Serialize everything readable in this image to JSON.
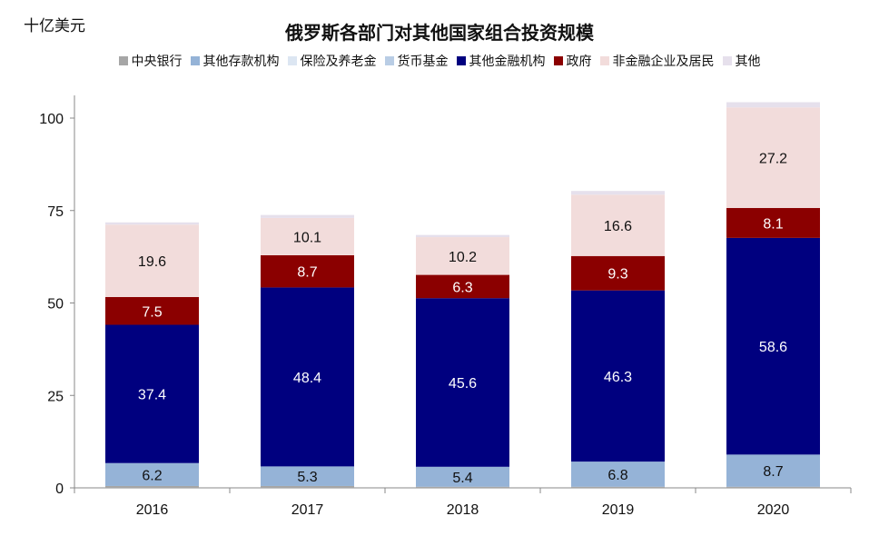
{
  "chart_data": {
    "type": "bar",
    "stacked": true,
    "title": "俄罗斯各部门对其他国家组合投资规模",
    "unit_label": "十亿美元",
    "categories": [
      "2016",
      "2017",
      "2018",
      "2019",
      "2020"
    ],
    "ylim": [
      0,
      100
    ],
    "yticks": [
      "0",
      "25",
      "50",
      "75",
      "100"
    ],
    "grid": false,
    "legend_position": "top",
    "series": [
      {
        "name": "中央银行",
        "color": "#a6a6a6",
        "values": [
          0.5,
          0.5,
          0.3,
          0.3,
          0.3
        ],
        "labels": [
          "",
          "",
          "",
          "",
          ""
        ]
      },
      {
        "name": "其他存款机构",
        "color": "#95b3d7",
        "values": [
          6.2,
          5.3,
          5.4,
          6.8,
          8.7
        ],
        "labels": [
          "6.2",
          "5.3",
          "5.4",
          "6.8",
          "8.7"
        ]
      },
      {
        "name": "保险及养老金",
        "color": "#dce6f2",
        "values": [
          0,
          0,
          0,
          0,
          0
        ],
        "labels": [
          "",
          "",
          "",
          "",
          ""
        ]
      },
      {
        "name": "货币基金",
        "color": "#b9cde5",
        "values": [
          0,
          0,
          0,
          0,
          0
        ],
        "labels": [
          "",
          "",
          "",
          "",
          ""
        ]
      },
      {
        "name": "其他金融机构",
        "color": "#00007f",
        "values": [
          37.4,
          48.4,
          45.6,
          46.3,
          58.6
        ],
        "labels": [
          "37.4",
          "48.4",
          "45.6",
          "46.3",
          "58.6"
        ]
      },
      {
        "name": "政府",
        "color": "#8b0000",
        "values": [
          7.5,
          8.7,
          6.3,
          9.3,
          8.1
        ],
        "labels": [
          "7.5",
          "8.7",
          "6.3",
          "9.3",
          "8.1"
        ]
      },
      {
        "name": "非金融企业及居民",
        "color": "#f2dcdb",
        "values": [
          19.6,
          10.1,
          10.2,
          16.6,
          27.2
        ],
        "labels": [
          "19.6",
          "10.1",
          "10.2",
          "16.6",
          "27.2"
        ]
      },
      {
        "name": "其他",
        "color": "#e6e0ec",
        "values": [
          0.6,
          0.8,
          0.6,
          1.0,
          1.4
        ],
        "labels": [
          "",
          "",
          "",
          "",
          ""
        ]
      }
    ]
  }
}
